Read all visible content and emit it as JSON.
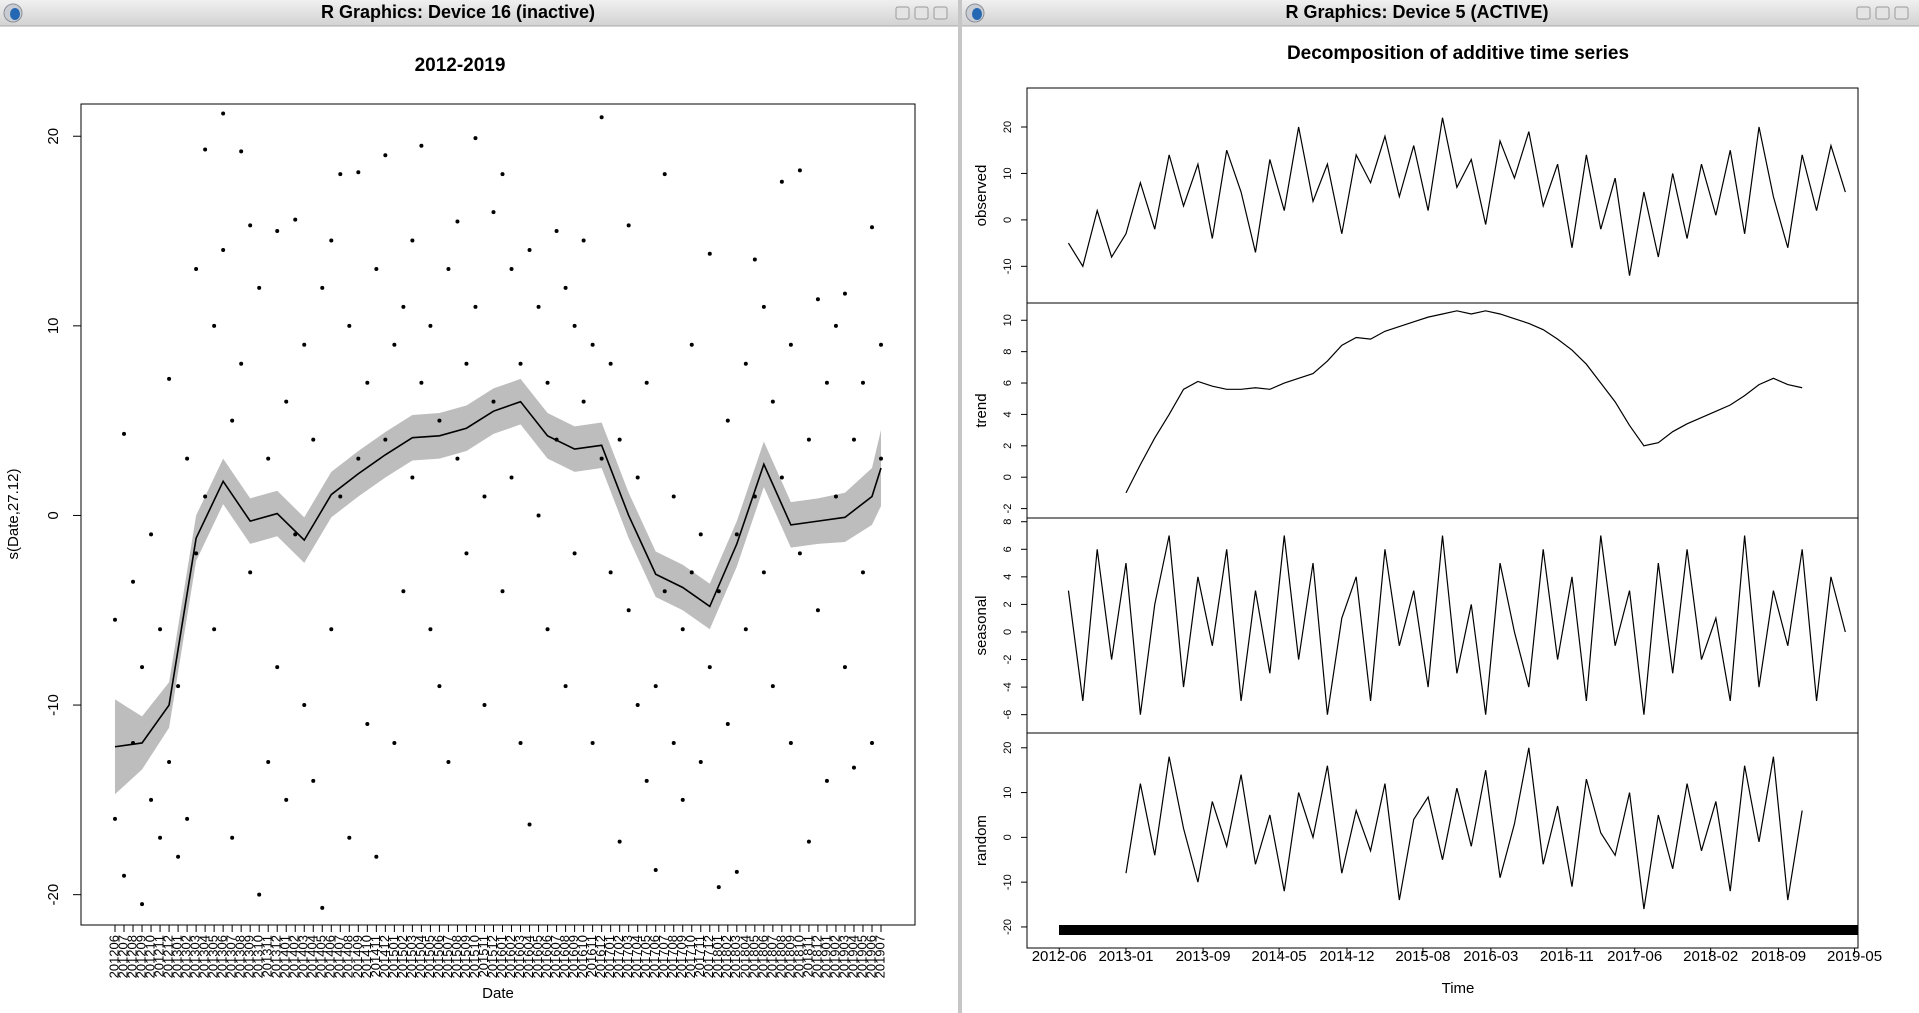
{
  "windows": [
    {
      "title": "R Graphics: Device 16 (inactive)",
      "chart_data": {
        "type": "scatter",
        "title": "2012-2019",
        "xlabel": "Date",
        "ylabel": "s(Date,27.12)",
        "ylim": [
          -21.6,
          21.7
        ],
        "yticks": [
          -20,
          -10,
          0,
          10,
          20
        ],
        "categories": [
          "201206",
          "201207",
          "201208",
          "201209",
          "201210",
          "201211",
          "201212",
          "201301",
          "201302",
          "201303",
          "201304",
          "201305",
          "201306",
          "201307",
          "201308",
          "201309",
          "201310",
          "201311",
          "201312",
          "201401",
          "201402",
          "201403",
          "201404",
          "201405",
          "201406",
          "201407",
          "201408",
          "201409",
          "201410",
          "201411",
          "201412",
          "201501",
          "201502",
          "201503",
          "201504",
          "201505",
          "201506",
          "201507",
          "201508",
          "201509",
          "201510",
          "201511",
          "201512",
          "201601",
          "201602",
          "201603",
          "201604",
          "201605",
          "201606",
          "201607",
          "201608",
          "201609",
          "201610",
          "201611",
          "201612",
          "201701",
          "201702",
          "201703",
          "201704",
          "201705",
          "201706",
          "201707",
          "201708",
          "201709",
          "201710",
          "201711",
          "201712",
          "201801",
          "201802",
          "201803",
          "201804",
          "201805",
          "201806",
          "201807",
          "201808",
          "201809",
          "201810",
          "201811",
          "201812",
          "201901",
          "201902",
          "201903",
          "201904",
          "201905",
          "201906",
          "201907"
        ],
        "points": {
          "x": [
            "201206",
            "201206",
            "201207",
            "201207",
            "201208",
            "201208",
            "201209",
            "201209",
            "201210",
            "201210",
            "201211",
            "201211",
            "201212",
            "201212",
            "201301",
            "201301",
            "201302",
            "201302",
            "201303",
            "201303",
            "201304",
            "201304",
            "201305",
            "201305",
            "201306",
            "201306",
            "201307",
            "201307",
            "201308",
            "201308",
            "201309",
            "201309",
            "201310",
            "201310",
            "201311",
            "201311",
            "201312",
            "201312",
            "201401",
            "201401",
            "201402",
            "201402",
            "201403",
            "201403",
            "201404",
            "201404",
            "201405",
            "201405",
            "201406",
            "201406",
            "201407",
            "201407",
            "201408",
            "201408",
            "201409",
            "201409",
            "201410",
            "201410",
            "201411",
            "201411",
            "201412",
            "201412",
            "201501",
            "201501",
            "201502",
            "201502",
            "201503",
            "201503",
            "201504",
            "201504",
            "201505",
            "201505",
            "201506",
            "201506",
            "201507",
            "201507",
            "201508",
            "201508",
            "201509",
            "201509",
            "201510",
            "201510",
            "201511",
            "201511",
            "201512",
            "201512",
            "201601",
            "201601",
            "201602",
            "201602",
            "201603",
            "201603",
            "201604",
            "201604",
            "201605",
            "201605",
            "201606",
            "201606",
            "201607",
            "201607",
            "201608",
            "201608",
            "201609",
            "201609",
            "201610",
            "201610",
            "201611",
            "201611",
            "201612",
            "201612",
            "201701",
            "201701",
            "201702",
            "201702",
            "201703",
            "201703",
            "201704",
            "201704",
            "201705",
            "201705",
            "201706",
            "201706",
            "201707",
            "201707",
            "201708",
            "201708",
            "201709",
            "201709",
            "201710",
            "201710",
            "201711",
            "201711",
            "201712",
            "201712",
            "201801",
            "201801",
            "201802",
            "201802",
            "201803",
            "201803",
            "201804",
            "201804",
            "201805",
            "201805",
            "201806",
            "201806",
            "201807",
            "201807",
            "201808",
            "201808",
            "201809",
            "201809",
            "201810",
            "201810",
            "201811",
            "201811",
            "201812",
            "201812",
            "201901",
            "201901",
            "201902",
            "201902",
            "201903",
            "201903",
            "201904",
            "201904",
            "201905",
            "201905",
            "201906",
            "201906",
            "201907",
            "201907"
          ],
          "y": [
            -5.5,
            -16,
            4.3,
            -19,
            -12,
            -3.5,
            -20.5,
            -8,
            -15,
            -1,
            -17,
            -6,
            7.2,
            -13,
            -18,
            -9,
            3,
            -16,
            13,
            -2,
            19.3,
            1,
            10,
            -6,
            21.2,
            14,
            5,
            -17,
            19.2,
            8,
            15.3,
            -3,
            -20,
            12,
            3,
            -13,
            15,
            -8,
            6,
            -15,
            15.6,
            -1,
            9,
            -10,
            -14,
            4,
            -20.7,
            12,
            14.5,
            -6,
            18,
            1,
            10,
            -17,
            3,
            18.1,
            -11,
            7,
            13,
            -18,
            19,
            4,
            9,
            -12,
            11,
            -4,
            14.5,
            2,
            19.5,
            7,
            -6,
            10,
            5,
            -9,
            13,
            -13,
            15.5,
            3,
            8,
            -2,
            19.9,
            11,
            1,
            -10,
            16,
            6,
            18,
            -4,
            13,
            2,
            8,
            -12,
            14,
            -16.3,
            11,
            0,
            7,
            -6,
            15,
            4,
            12,
            -9,
            10,
            -2,
            14.5,
            6,
            9,
            -12,
            21,
            3,
            8,
            -3,
            4,
            -17.2,
            -5,
            15.3,
            -10,
            2,
            -14,
            7,
            -9,
            -18.7,
            -4,
            18,
            -12,
            1,
            -15,
            -6,
            -3,
            9,
            -13,
            -1,
            13.8,
            -8,
            -19.6,
            -4,
            -11,
            5,
            -18.8,
            -1,
            8,
            -6,
            13.5,
            1,
            11,
            -3,
            6,
            -9,
            17.6,
            2,
            9,
            -12,
            18.2,
            -2,
            4,
            -17.2,
            11.4,
            -5,
            7,
            -14,
            10,
            1,
            -8,
            11.7,
            4,
            -13.3,
            7,
            -3,
            15.2,
            -12,
            9,
            3
          ]
        },
        "smooth": {
          "x": [
            "201206",
            "201209",
            "201212",
            "201303",
            "201306",
            "201309",
            "201312",
            "201403",
            "201406",
            "201409",
            "201412",
            "201503",
            "201506",
            "201509",
            "201512",
            "201603",
            "201606",
            "201609",
            "201612",
            "201703",
            "201706",
            "201709",
            "201712",
            "201803",
            "201806",
            "201809",
            "201812",
            "201903",
            "201906",
            "201907"
          ],
          "fit": [
            -12.2,
            -12,
            -10,
            -1.2,
            1.8,
            -0.3,
            0.1,
            -1.3,
            1.1,
            2.2,
            3.2,
            4.1,
            4.2,
            4.6,
            5.5,
            6.0,
            4.2,
            3.5,
            3.7,
            0,
            -3.1,
            -3.8,
            -4.8,
            -1.5,
            2.7,
            -0.5,
            -0.3,
            -0.1,
            1.0,
            2.5
          ],
          "upper": [
            -9.7,
            -10.6,
            -8.8,
            0.0,
            3.0,
            0.9,
            1.3,
            -0.1,
            2.3,
            3.4,
            4.4,
            5.3,
            5.4,
            5.8,
            6.7,
            7.2,
            5.4,
            4.7,
            4.9,
            1.2,
            -1.9,
            -2.6,
            -3.6,
            -0.3,
            3.9,
            0.7,
            0.9,
            1.2,
            2.5,
            4.5
          ],
          "lower": [
            -14.7,
            -13.4,
            -11.2,
            -2.4,
            0.6,
            -1.5,
            -1.1,
            -2.5,
            -0.1,
            1.0,
            2.0,
            2.9,
            3.0,
            3.4,
            4.3,
            4.8,
            3.0,
            2.3,
            2.5,
            -1.2,
            -4.3,
            -5.0,
            -6.0,
            -2.7,
            1.5,
            -1.7,
            -1.5,
            -1.4,
            -0.5,
            0.5
          ]
        }
      }
    },
    {
      "title": "R Graphics: Device 5 (ACTIVE)",
      "chart_data": {
        "type": "line",
        "title": "Decomposition of additive time series",
        "xlabel": "Time",
        "xlim": [
          2012.14,
          2019.36
        ],
        "xticks": [
          {
            "value": 2012.42,
            "label": "2012-06"
          },
          {
            "value": 2013.0,
            "label": "2013-01"
          },
          {
            "value": 2013.67,
            "label": "2013-09"
          },
          {
            "value": 2014.33,
            "label": "2014-05"
          },
          {
            "value": 2014.92,
            "label": "2014-12"
          },
          {
            "value": 2015.58,
            "label": "2015-08"
          },
          {
            "value": 2016.17,
            "label": "2016-03"
          },
          {
            "value": 2016.83,
            "label": "2016-11"
          },
          {
            "value": 2017.42,
            "label": "2017-06"
          },
          {
            "value": 2018.08,
            "label": "2018-02"
          },
          {
            "value": 2018.67,
            "label": "2018-09"
          },
          {
            "value": 2019.33,
            "label": "2019-05"
          }
        ],
        "x": [
          2012.5,
          2012.625,
          2012.75,
          2012.875,
          2013,
          2013.125,
          2013.25,
          2013.375,
          2013.5,
          2013.625,
          2013.75,
          2013.875,
          2014,
          2014.125,
          2014.25,
          2014.375,
          2014.5,
          2014.625,
          2014.75,
          2014.875,
          2015,
          2015.125,
          2015.25,
          2015.375,
          2015.5,
          2015.625,
          2015.75,
          2015.875,
          2016,
          2016.125,
          2016.25,
          2016.375,
          2016.5,
          2016.625,
          2016.75,
          2016.875,
          2017,
          2017.125,
          2017.25,
          2017.375,
          2017.5,
          2017.625,
          2017.75,
          2017.875,
          2018,
          2018.125,
          2018.25,
          2018.375,
          2018.5,
          2018.625,
          2018.75,
          2018.875,
          2019,
          2019.125,
          2019.25
        ],
        "panels": [
          {
            "ylabel": "observed",
            "ylim": [
              -17.9,
              28.4
            ],
            "yticks": [
              -10,
              0,
              10,
              20
            ],
            "values": [
              -5,
              -10,
              2,
              -8,
              -3,
              8,
              -2,
              14,
              3,
              12,
              -4,
              15,
              6,
              -7,
              13,
              2,
              20,
              4,
              12,
              -3,
              14,
              8,
              18,
              5,
              16,
              2,
              22,
              7,
              13,
              -1,
              17,
              9,
              19,
              3,
              12,
              -6,
              14,
              -2,
              9,
              -12,
              6,
              -8,
              10,
              -4,
              12,
              1,
              15,
              -3,
              20,
              5,
              -6,
              14,
              2,
              16,
              6
            ]
          },
          {
            "ylabel": "trend",
            "ylim": [
              -2.6,
              11.1
            ],
            "yticks": [
              -2,
              0,
              2,
              4,
              6,
              8,
              10
            ],
            "values": [
              null,
              null,
              null,
              null,
              -1.0,
              0.8,
              2.5,
              4.0,
              5.6,
              6.1,
              5.8,
              5.6,
              5.6,
              5.7,
              5.6,
              6.0,
              6.3,
              6.6,
              7.4,
              8.4,
              8.9,
              8.8,
              9.3,
              9.6,
              9.9,
              10.2,
              10.4,
              10.6,
              10.4,
              10.6,
              10.4,
              10.1,
              9.8,
              9.4,
              8.8,
              8.1,
              7.2,
              6.0,
              4.8,
              3.3,
              2.0,
              2.2,
              2.9,
              3.4,
              3.8,
              4.2,
              4.6,
              5.2,
              5.9,
              6.3,
              5.9,
              5.7,
              null,
              null,
              null
            ]
          },
          {
            "ylabel": "seasonal",
            "ylim": [
              -7.33,
              8.27
            ],
            "yticks": [
              -6,
              -4,
              -2,
              0,
              2,
              4,
              6,
              8
            ],
            "values": [
              3,
              -5,
              6,
              -2,
              5,
              -6,
              2,
              7,
              -4,
              4,
              -1,
              6,
              -5,
              3,
              -3,
              7,
              -2,
              5,
              -6,
              1,
              4,
              -5,
              6,
              -1,
              3,
              -4,
              7,
              -3,
              2,
              -6,
              5,
              0,
              -4,
              6,
              -2,
              4,
              -5,
              7,
              -1,
              3,
              -6,
              5,
              -3,
              6,
              -2,
              1,
              -5,
              7,
              -4,
              3,
              -1,
              6,
              -5,
              4,
              0
            ]
          },
          {
            "ylabel": "random",
            "ylim": [
              -24.7,
              23.3
            ],
            "yticks": [
              -20,
              -10,
              0,
              10,
              20
            ],
            "values": [
              null,
              null,
              null,
              null,
              -8,
              12,
              -4,
              18,
              2,
              -10,
              8,
              -2,
              14,
              -6,
              5,
              -12,
              10,
              0,
              16,
              -8,
              6,
              -3,
              12,
              -14,
              4,
              9,
              -5,
              11,
              -2,
              15,
              -9,
              3,
              20,
              -6,
              7,
              -11,
              13,
              1,
              -4,
              10,
              -16,
              5,
              -7,
              12,
              -3,
              8,
              -12,
              16,
              -1,
              18,
              -14,
              6,
              null,
              null,
              null
            ]
          }
        ]
      }
    }
  ]
}
